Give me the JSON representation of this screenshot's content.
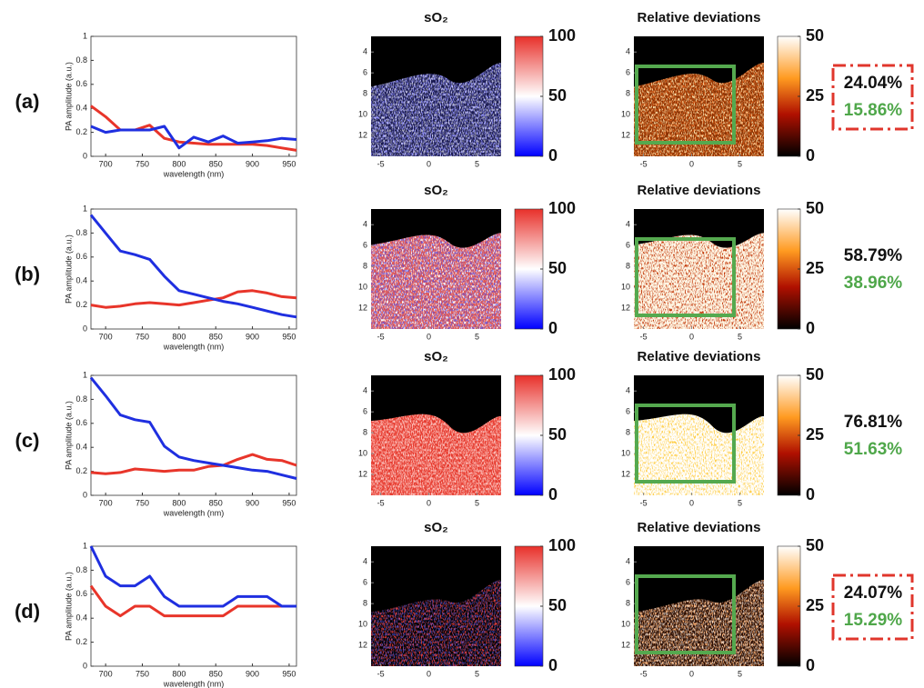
{
  "chart_data": [
    {
      "type": "line",
      "x": [
        680,
        700,
        720,
        740,
        760,
        780,
        800,
        820,
        840,
        860,
        880,
        900,
        920,
        940,
        960
      ],
      "xlim": [
        680,
        960
      ],
      "xticks": [
        700,
        750,
        800,
        850,
        900,
        950
      ],
      "ylim": [
        0,
        1
      ],
      "yticks": [
        0,
        0.2,
        0.4,
        0.6,
        0.8,
        1
      ],
      "xlabel": "wavelength (nm)",
      "ylabel": "PA amplitude (a.u.)",
      "series": [
        {
          "color": "#e8352a",
          "values": [
            0.42,
            0.33,
            0.22,
            0.22,
            0.26,
            0.15,
            0.12,
            0.11,
            0.1,
            0.1,
            0.1,
            0.1,
            0.09,
            0.07,
            0.05
          ]
        },
        {
          "color": "#1f2fe0",
          "values": [
            0.25,
            0.2,
            0.22,
            0.22,
            0.22,
            0.25,
            0.07,
            0.16,
            0.12,
            0.17,
            0.11,
            0.12,
            0.13,
            0.15,
            0.14
          ]
        }
      ]
    },
    {
      "type": "line",
      "x": [
        680,
        700,
        720,
        740,
        760,
        780,
        800,
        820,
        840,
        860,
        880,
        900,
        920,
        940,
        960
      ],
      "xlim": [
        680,
        960
      ],
      "xticks": [
        700,
        750,
        800,
        850,
        900,
        950
      ],
      "ylim": [
        0,
        1
      ],
      "yticks": [
        0,
        0.2,
        0.4,
        0.6,
        0.8,
        1
      ],
      "xlabel": "wavelength (nm)",
      "ylabel": "PA amplitude (a.u.)",
      "series": [
        {
          "color": "#e8352a",
          "values": [
            0.2,
            0.18,
            0.19,
            0.21,
            0.22,
            0.21,
            0.2,
            0.22,
            0.24,
            0.26,
            0.31,
            0.32,
            0.3,
            0.27,
            0.26
          ]
        },
        {
          "color": "#1f2fe0",
          "values": [
            0.95,
            0.8,
            0.65,
            0.62,
            0.58,
            0.44,
            0.32,
            0.29,
            0.26,
            0.23,
            0.21,
            0.18,
            0.15,
            0.12,
            0.1
          ]
        }
      ]
    },
    {
      "type": "line",
      "x": [
        680,
        700,
        720,
        740,
        760,
        780,
        800,
        820,
        840,
        860,
        880,
        900,
        920,
        940,
        960
      ],
      "xlim": [
        680,
        960
      ],
      "xticks": [
        700,
        750,
        800,
        850,
        900,
        950
      ],
      "ylim": [
        0,
        1
      ],
      "yticks": [
        0,
        0.2,
        0.4,
        0.6,
        0.8,
        1
      ],
      "xlabel": "wavelength (nm)",
      "ylabel": "PA amplitude (a.u.)",
      "series": [
        {
          "color": "#e8352a",
          "values": [
            0.19,
            0.18,
            0.19,
            0.22,
            0.21,
            0.2,
            0.21,
            0.21,
            0.24,
            0.25,
            0.3,
            0.34,
            0.3,
            0.29,
            0.25
          ]
        },
        {
          "color": "#1f2fe0",
          "values": [
            0.98,
            0.83,
            0.67,
            0.63,
            0.61,
            0.41,
            0.32,
            0.29,
            0.27,
            0.25,
            0.23,
            0.21,
            0.2,
            0.17,
            0.14
          ]
        }
      ]
    },
    {
      "type": "line",
      "x": [
        680,
        700,
        720,
        740,
        760,
        780,
        800,
        820,
        840,
        860,
        880,
        900,
        920,
        940,
        960
      ],
      "xlim": [
        680,
        960
      ],
      "xticks": [
        700,
        750,
        800,
        850,
        900,
        950
      ],
      "ylim": [
        0,
        1
      ],
      "yticks": [
        0,
        0.2,
        0.4,
        0.6,
        0.8,
        1
      ],
      "xlabel": "wavelength (nm)",
      "ylabel": "PA amplitude (a.u.)",
      "series": [
        {
          "color": "#e8352a",
          "values": [
            0.67,
            0.5,
            0.42,
            0.5,
            0.5,
            0.42,
            0.42,
            0.42,
            0.42,
            0.42,
            0.5,
            0.5,
            0.5,
            0.5,
            0.5
          ]
        },
        {
          "color": "#1f2fe0",
          "values": [
            1.0,
            0.75,
            0.67,
            0.67,
            0.75,
            0.58,
            0.5,
            0.5,
            0.5,
            0.5,
            0.58,
            0.58,
            0.58,
            0.5,
            0.5
          ]
        }
      ]
    }
  ],
  "rows": [
    {
      "label": "(a)",
      "so2_title": "sO₂",
      "dev_title": "Relative deviations",
      "img_xlim": [
        -6,
        7.5
      ],
      "img_xticks": [
        -5,
        0,
        5
      ],
      "img_ylim": [
        2.5,
        14
      ],
      "img_yticks": [
        4,
        6,
        8,
        10,
        12
      ],
      "so2_cbar_lim": [
        0,
        100
      ],
      "so2_cbar_ticks": [
        0,
        50,
        100
      ],
      "dev_cbar_lim": [
        0,
        50
      ],
      "dev_cbar_ticks": [
        0,
        25,
        50
      ],
      "percents": [
        "24.04%",
        "15.86%"
      ],
      "highlight": true
    },
    {
      "label": "(b)",
      "so2_title": "sO₂",
      "dev_title": "Relative deviations",
      "img_xlim": [
        -6,
        7.5
      ],
      "img_xticks": [
        -5,
        0,
        5
      ],
      "img_ylim": [
        2.5,
        14
      ],
      "img_yticks": [
        4,
        6,
        8,
        10,
        12
      ],
      "so2_cbar_lim": [
        0,
        100
      ],
      "so2_cbar_ticks": [
        0,
        50,
        100
      ],
      "dev_cbar_lim": [
        0,
        50
      ],
      "dev_cbar_ticks": [
        0,
        25,
        50
      ],
      "percents": [
        "58.79%",
        "38.96%"
      ],
      "highlight": false
    },
    {
      "label": "(c)",
      "so2_title": "sO₂",
      "dev_title": "Relative deviations",
      "img_xlim": [
        -6,
        7.5
      ],
      "img_xticks": [
        -5,
        0,
        5
      ],
      "img_ylim": [
        2.5,
        14
      ],
      "img_yticks": [
        4,
        6,
        8,
        10,
        12
      ],
      "so2_cbar_lim": [
        0,
        100
      ],
      "so2_cbar_ticks": [
        0,
        50,
        100
      ],
      "dev_cbar_lim": [
        0,
        50
      ],
      "dev_cbar_ticks": [
        0,
        25,
        50
      ],
      "percents": [
        "76.81%",
        "51.63%"
      ],
      "highlight": false
    },
    {
      "label": "(d)",
      "so2_title": "sO₂",
      "dev_title": "Relative deviations",
      "img_xlim": [
        -6,
        7.5
      ],
      "img_xticks": [
        -5,
        0,
        5
      ],
      "img_ylim": [
        2.5,
        14
      ],
      "img_yticks": [
        4,
        6,
        8,
        10,
        12
      ],
      "so2_cbar_lim": [
        0,
        100
      ],
      "so2_cbar_ticks": [
        0,
        50,
        100
      ],
      "dev_cbar_lim": [
        0,
        50
      ],
      "dev_cbar_ticks": [
        0,
        25,
        50
      ],
      "percents": [
        "24.07%",
        "15.29%"
      ],
      "highlight": true
    }
  ]
}
